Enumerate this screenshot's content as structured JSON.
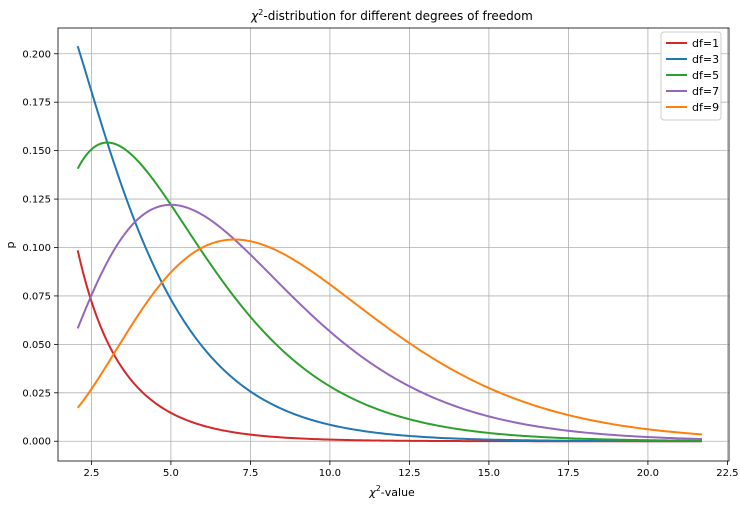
{
  "chart_data": {
    "type": "line",
    "title_symbol": "χ",
    "title_sup": "2",
    "title_rest": "-distribution for different degrees of freedom",
    "xlabel_symbol": "χ",
    "xlabel_sup": "2",
    "xlabel_rest": "-value",
    "ylabel": "p",
    "xlim": [
      1.45,
      22.55
    ],
    "ylim": [
      -0.0102,
      0.2133
    ],
    "x_domain": [
      2.07,
      21.7
    ],
    "grid": true,
    "legend_position": "top-right",
    "x_ticks": [
      "2.5",
      "5.0",
      "7.5",
      "10.0",
      "12.5",
      "15.0",
      "17.5",
      "20.0",
      "22.5"
    ],
    "y_ticks": [
      "0.000",
      "0.025",
      "0.050",
      "0.075",
      "0.100",
      "0.125",
      "0.150",
      "0.175",
      "0.200"
    ],
    "series": [
      {
        "name": "df=1",
        "df": 1,
        "color": "#d62728"
      },
      {
        "name": "df=3",
        "df": 3,
        "color": "#1f77b4"
      },
      {
        "name": "df=5",
        "df": 5,
        "color": "#2ca02c"
      },
      {
        "name": "df=7",
        "df": 7,
        "color": "#9467bd"
      },
      {
        "name": "df=9",
        "df": 9,
        "color": "#ff7f0e"
      }
    ]
  }
}
